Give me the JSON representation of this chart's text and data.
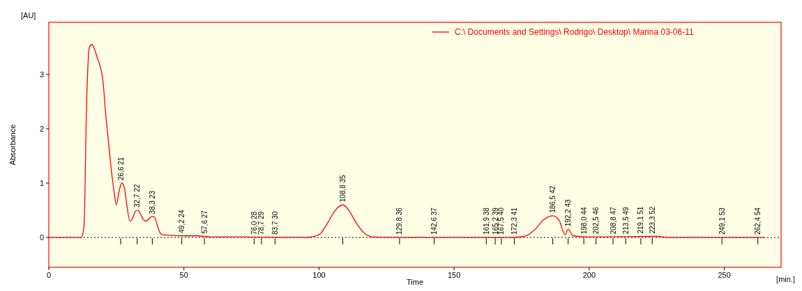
{
  "chart_data": {
    "type": "line",
    "xlabel": "Time",
    "ylabel": "Absorbance",
    "xlim": [
      0,
      271
    ],
    "ylim": [
      -0.55,
      3.96
    ],
    "xticks": [
      0,
      50,
      100,
      150,
      200,
      250
    ],
    "yticks": [
      0,
      1,
      2,
      3
    ],
    "legend": "top right",
    "grid": false,
    "marker": "none",
    "line_style": "solid",
    "series": [
      {
        "name": "C:\\ Documents and Settings\\ Rodrigo\\ Desktop\\ Marina 03-06-11",
        "color": "#ff0000",
        "x": [
          0,
          12,
          13,
          14,
          15,
          16,
          17,
          18,
          19,
          20,
          21,
          22,
          23,
          24,
          25,
          26,
          27,
          28,
          29,
          30,
          31,
          32,
          33,
          34,
          35,
          36,
          38,
          39,
          40,
          41,
          42,
          50,
          55,
          60,
          70,
          95,
          100,
          103,
          106,
          108.8,
          111,
          114,
          117,
          120,
          130,
          170,
          176,
          180,
          183,
          186.5,
          189,
          191,
          192.2,
          194,
          200,
          225,
          230,
          265
        ],
        "values": [
          0,
          0,
          0.2,
          2.5,
          3.5,
          3.55,
          3.45,
          3.3,
          3.15,
          2.9,
          2.3,
          1.8,
          1.3,
          0.9,
          0.6,
          0.85,
          1.0,
          0.9,
          0.55,
          0.3,
          0.35,
          0.48,
          0.5,
          0.42,
          0.33,
          0.3,
          0.38,
          0.38,
          0.25,
          0.1,
          0.05,
          0.03,
          0.03,
          0.01,
          0.01,
          0,
          0.05,
          0.25,
          0.5,
          0.6,
          0.5,
          0.25,
          0.07,
          0.01,
          0,
          0,
          0.02,
          0.15,
          0.32,
          0.4,
          0.3,
          0.05,
          0.15,
          0.03,
          0.01,
          0.02,
          0,
          0
        ]
      }
    ],
    "ref_lines": [
      {
        "axis": "y",
        "value": 0,
        "line_style": "dotted",
        "color": "#000000"
      }
    ],
    "annotations": [
      "[AU]",
      "[min.]",
      {
        "text": "26,6  21",
        "x": 26.6,
        "y": 1.0
      },
      {
        "text": "32,7  22",
        "x": 32.7,
        "y": 0.5
      },
      {
        "text": "38,3  23",
        "x": 38.3,
        "y": 0.38
      },
      {
        "text": "49,2  24",
        "x": 49.2,
        "y": 0.03
      },
      {
        "text": "57,6  27",
        "x": 57.6,
        "y": 0.02
      },
      {
        "text": "76,0  28",
        "x": 76.0,
        "y": 0
      },
      {
        "text": "78,7  29",
        "x": 78.7,
        "y": 0
      },
      {
        "text": "83,7  30",
        "x": 83.7,
        "y": 0
      },
      {
        "text": "108,8  35",
        "x": 108.8,
        "y": 0.6
      },
      {
        "text": "129,8  36",
        "x": 129.8,
        "y": 0
      },
      {
        "text": "142,6  37",
        "x": 142.6,
        "y": 0
      },
      {
        "text": "161,9  38",
        "x": 161.9,
        "y": 0
      },
      {
        "text": "165,2  39",
        "x": 165.2,
        "y": 0
      },
      {
        "text": "167,5  40",
        "x": 167.5,
        "y": 0
      },
      {
        "text": "172,3  41",
        "x": 172.3,
        "y": 0
      },
      {
        "text": "186,5  42",
        "x": 186.5,
        "y": 0.4
      },
      {
        "text": "192,2  43",
        "x": 192.2,
        "y": 0.15
      },
      {
        "text": "198,0  44",
        "x": 198.0,
        "y": 0.01
      },
      {
        "text": "202,5  46",
        "x": 202.5,
        "y": 0.01
      },
      {
        "text": "208,8  47",
        "x": 208.8,
        "y": 0.01
      },
      {
        "text": "213,5  49",
        "x": 213.5,
        "y": 0.01
      },
      {
        "text": "219,1  51",
        "x": 219.1,
        "y": 0.02
      },
      {
        "text": "223,3  52",
        "x": 223.3,
        "y": 0.02
      },
      {
        "text": "249,1  53",
        "x": 249.1,
        "y": 0
      },
      {
        "text": "262,4  54",
        "x": 262.4,
        "y": 0
      }
    ]
  }
}
